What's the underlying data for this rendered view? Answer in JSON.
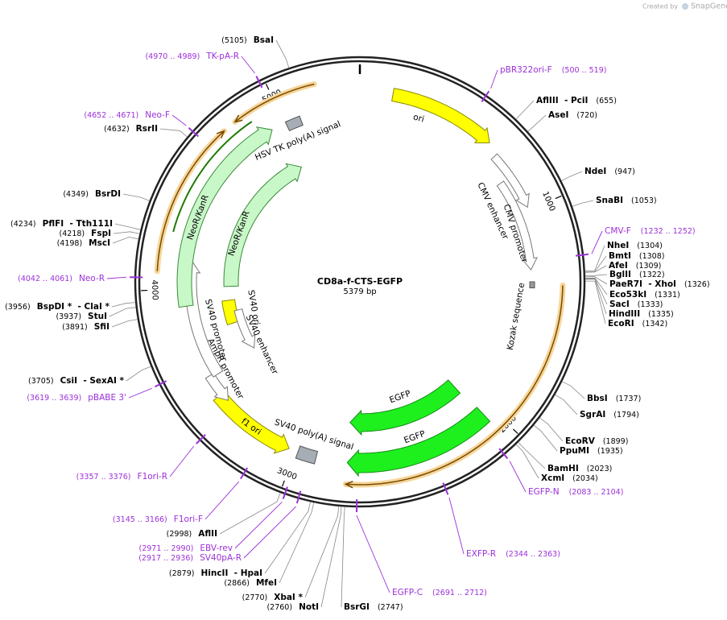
{
  "credit": {
    "prefix": "Created by",
    "brand": "SnapGene"
  },
  "map": {
    "name": "CD8a-f-CTS-EGFP",
    "size": "5379 bp"
  },
  "scale_labels": [
    "1000",
    "2000",
    "3000",
    "4000",
    "5000"
  ],
  "features": [
    {
      "label": "ori"
    },
    {
      "label": "CMV enhancer"
    },
    {
      "label": "CMV promoter"
    },
    {
      "label": "Kozak sequence"
    },
    {
      "label": "EGFP"
    },
    {
      "label": "EGFP"
    },
    {
      "label": "SV40 poly(A) signal"
    },
    {
      "label": "f1 ori"
    },
    {
      "label": "AmpR promoter"
    },
    {
      "label": "SV40 promoter"
    },
    {
      "label": "SV40 ori"
    },
    {
      "label": "SV40 enhancer"
    },
    {
      "label": "NeoR/KanR"
    },
    {
      "label": "NeoR/KanR"
    },
    {
      "label": "HSV TK poly(A) signal"
    }
  ],
  "enzymes": [
    {
      "name": "BsaI",
      "position": "(5105)"
    },
    {
      "name": "AflIII  - PciI",
      "position": "(655)"
    },
    {
      "name": "AseI",
      "position": "(720)"
    },
    {
      "name": "NdeI",
      "position": "(947)"
    },
    {
      "name": "SnaBI",
      "position": "(1053)"
    },
    {
      "name": "NheI",
      "position": "(1304)"
    },
    {
      "name": "BmtI",
      "position": "(1308)"
    },
    {
      "name": "AfeI",
      "position": "(1309)"
    },
    {
      "name": "BglII",
      "position": "(1322)"
    },
    {
      "name": "PaeR7I  - XhoI",
      "position": "(1326)"
    },
    {
      "name": "Eco53kI",
      "position": "(1331)"
    },
    {
      "name": "SacI",
      "position": "(1333)"
    },
    {
      "name": "HindIII",
      "position": "(1335)"
    },
    {
      "name": "EcoRI",
      "position": "(1342)"
    },
    {
      "name": "BbsI",
      "position": "(1737)"
    },
    {
      "name": "SgrAI",
      "position": "(1794)"
    },
    {
      "name": "EcoRV",
      "position": "(1899)"
    },
    {
      "name": "PpuMI",
      "position": "(1935)"
    },
    {
      "name": "BamHI",
      "position": "(2023)"
    },
    {
      "name": "XcmI",
      "position": "(2034)"
    },
    {
      "name": "BsrGI",
      "position": "(2747)"
    },
    {
      "name": "NotI",
      "position": "(2760)"
    },
    {
      "name": "XbaI *",
      "position": "(2770)"
    },
    {
      "name": "MfeI",
      "position": "(2866)"
    },
    {
      "name": "HincII  - HpaI",
      "position": "(2879)"
    },
    {
      "name": "AflII",
      "position": "(2998)"
    },
    {
      "name": "CsiI  - SexAI *",
      "position": "(3705)"
    },
    {
      "name": "SfiI",
      "position": "(3891)"
    },
    {
      "name": "StuI",
      "position": "(3937)"
    },
    {
      "name": "BspDI *  - ClaI *",
      "position": "(3956)"
    },
    {
      "name": "MscI",
      "position": "(4198)"
    },
    {
      "name": "FspI",
      "position": "(4218)"
    },
    {
      "name": "PflFI  - Tth111I",
      "position": "(4234)"
    },
    {
      "name": "BsrDI",
      "position": "(4349)"
    },
    {
      "name": "RsrII",
      "position": "(4632)"
    }
  ],
  "primers": [
    {
      "name": "TK-pA-R",
      "range": "(4970 .. 4989)"
    },
    {
      "name": "Neo-F",
      "range": "(4652 .. 4671)"
    },
    {
      "name": "Neo-R",
      "range": "(4042 .. 4061)"
    },
    {
      "name": "pBABE 3'",
      "range": "(3619 .. 3639)"
    },
    {
      "name": "F1ori-R",
      "range": "(3357 .. 3376)"
    },
    {
      "name": "F1ori-F",
      "range": "(3145 .. 3166)"
    },
    {
      "name": "EBV-rev",
      "range": "(2971 .. 2990)"
    },
    {
      "name": "SV40pA-R",
      "range": "(2917 .. 2936)"
    },
    {
      "name": "EGFP-C",
      "range": "(2691 .. 2712)"
    },
    {
      "name": "EXFP-R",
      "range": "(2344 .. 2363)"
    },
    {
      "name": "EGFP-N",
      "range": "(2083 .. 2104)"
    },
    {
      "name": "CMV-F",
      "range": "(1232 .. 1252)"
    },
    {
      "name": "pBR322ori-F",
      "range": "(500 .. 519)"
    }
  ]
}
